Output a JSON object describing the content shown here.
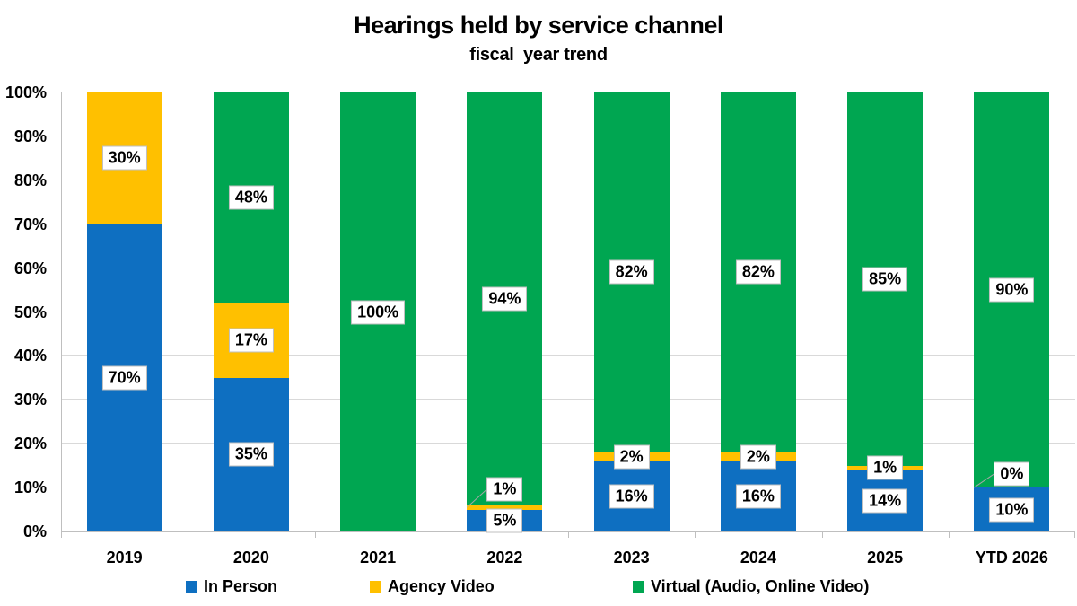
{
  "title": "Hearings held by service channel",
  "subtitle": "fiscal  year trend",
  "colors": {
    "in_person": "#0E6FC1",
    "agency_video": "#FFC000",
    "virtual": "#00A651",
    "gridline": "#D9D9D9",
    "axis": "#BFBFBF",
    "label_border": "#BFBFBF",
    "leader_line": "#A6A6A6",
    "text": "#000000"
  },
  "chart_data": {
    "type": "bar",
    "stacked": true,
    "title": "Hearings held by service channel",
    "subtitle": "fiscal  year trend",
    "categories": [
      "2019",
      "2020",
      "2021",
      "2022",
      "2023",
      "2024",
      "2025",
      "YTD 2026"
    ],
    "series": [
      {
        "name": "In Person",
        "color": "#0E6FC1",
        "values": [
          70,
          35,
          0,
          5,
          16,
          16,
          14,
          10
        ],
        "labels": [
          "70%",
          "35%",
          null,
          "5%",
          "16%",
          "16%",
          "14%",
          "10%"
        ]
      },
      {
        "name": "Agency Video",
        "color": "#FFC000",
        "values": [
          30,
          17,
          0,
          1,
          2,
          2,
          1,
          0
        ],
        "labels": [
          "30%",
          "17%",
          null,
          "1%",
          "2%",
          "2%",
          "1%",
          "0%"
        ]
      },
      {
        "name": "Virtual (Audio, Online Video)",
        "color": "#00A651",
        "values": [
          0,
          48,
          100,
          94,
          82,
          82,
          85,
          90
        ],
        "labels": [
          null,
          "48%",
          "100%",
          "94%",
          "82%",
          "82%",
          "85%",
          "90%"
        ]
      }
    ],
    "ylim": [
      0,
      100
    ],
    "yticks": [
      "0%",
      "10%",
      "20%",
      "30%",
      "40%",
      "50%",
      "60%",
      "70%",
      "80%",
      "90%",
      "100%"
    ],
    "grid": true,
    "legend_position": "bottom",
    "label_adjustments": [
      {
        "category": "2022",
        "series": "Agency Video",
        "dy": -20,
        "leader": true
      },
      {
        "category": "YTD 2026",
        "series": "Agency Video",
        "dy": -15,
        "leader": true
      }
    ]
  }
}
